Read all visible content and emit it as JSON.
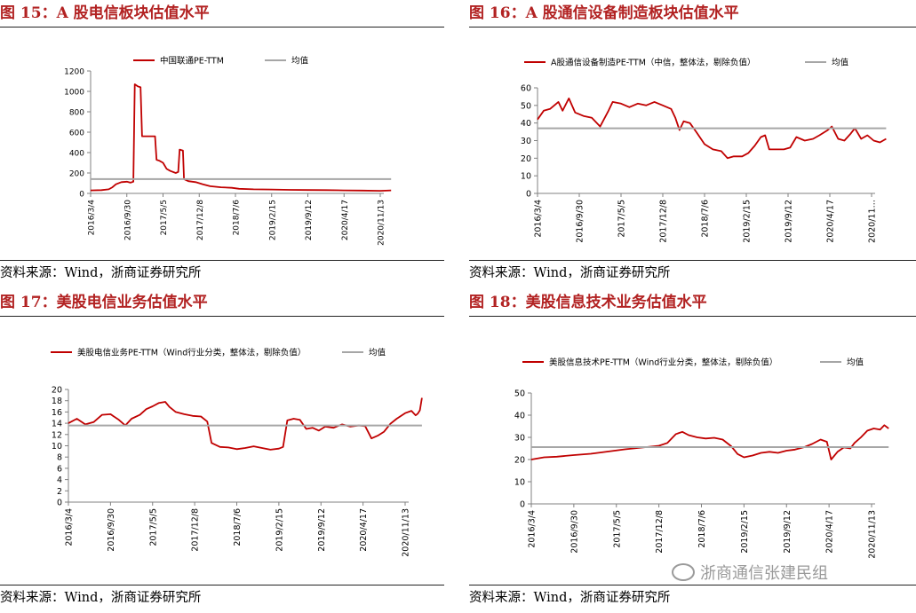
{
  "source_text": "资料来源：Wind，浙商证券研究所",
  "watermark": "浙商通信张建民组",
  "colors": {
    "series": "#c00000",
    "mean": "#a6a6a6",
    "title": "#b22222",
    "axis": "#808080"
  },
  "panels": [
    {
      "title": "图 15：A 股电信板块估值水平"
    },
    {
      "title": "图 16：A 股通信设备制造板块估值水平"
    },
    {
      "title": "图 17：美股电信业务估值水平"
    },
    {
      "title": "图 18：美股信息技术业务估值水平"
    }
  ],
  "chart_data": [
    {
      "type": "line",
      "x_ticks": [
        "2016/3/4",
        "2016/9/30",
        "2017/5/5",
        "2017/12/8",
        "2018/7/6",
        "2019/2/15",
        "2019/9/12",
        "2020/4/17",
        "2020/11/13"
      ],
      "ylim": [
        0,
        1200
      ],
      "y_ticks": [
        0,
        200,
        400,
        600,
        800,
        1000,
        1200
      ],
      "series": [
        {
          "name": "中国联通PE-TTM",
          "points": [
            [
              0,
              30
            ],
            [
              0.3,
              32
            ],
            [
              0.5,
              40
            ],
            [
              0.6,
              60
            ],
            [
              0.7,
              90
            ],
            [
              0.85,
              110
            ],
            [
              1.0,
              115
            ],
            [
              1.1,
              105
            ],
            [
              1.18,
              115
            ],
            [
              1.22,
              1070
            ],
            [
              1.3,
              1050
            ],
            [
              1.38,
              1040
            ],
            [
              1.42,
              560
            ],
            [
              1.6,
              560
            ],
            [
              1.78,
              560
            ],
            [
              1.82,
              330
            ],
            [
              1.9,
              320
            ],
            [
              2.0,
              300
            ],
            [
              2.1,
              240
            ],
            [
              2.2,
              220
            ],
            [
              2.35,
              200
            ],
            [
              2.42,
              210
            ],
            [
              2.46,
              430
            ],
            [
              2.55,
              420
            ],
            [
              2.58,
              140
            ],
            [
              2.7,
              120
            ],
            [
              2.9,
              110
            ],
            [
              3.1,
              90
            ],
            [
              3.3,
              70
            ],
            [
              3.6,
              60
            ],
            [
              3.9,
              55
            ],
            [
              4.1,
              45
            ],
            [
              4.5,
              40
            ],
            [
              5.0,
              38
            ],
            [
              5.5,
              35
            ],
            [
              6.0,
              33
            ],
            [
              6.5,
              32
            ],
            [
              7.0,
              30
            ],
            [
              7.5,
              28
            ],
            [
              8.0,
              25
            ],
            [
              8.3,
              30
            ]
          ]
        },
        {
          "name": "均值",
          "points": [
            [
              0,
              140
            ],
            [
              8.3,
              140
            ]
          ]
        }
      ]
    },
    {
      "type": "line",
      "x_ticks": [
        "2016/3/4",
        "2016/9/30",
        "2017/5/5",
        "2017/12/8",
        "2018/7/6",
        "2019/2/15",
        "2019/9/12",
        "2020/4/17",
        "2020/11…"
      ],
      "ylim": [
        0,
        60
      ],
      "y_ticks": [
        0,
        10,
        20,
        30,
        40,
        50,
        60
      ],
      "series": [
        {
          "name": "A股通信设备制造PE-TTM（中信，整体法，剔除负值）",
          "points": [
            [
              0,
              42
            ],
            [
              0.15,
              47
            ],
            [
              0.3,
              48
            ],
            [
              0.5,
              52
            ],
            [
              0.6,
              47
            ],
            [
              0.75,
              54
            ],
            [
              0.9,
              46
            ],
            [
              1.1,
              44
            ],
            [
              1.3,
              43
            ],
            [
              1.5,
              38
            ],
            [
              1.7,
              47
            ],
            [
              1.8,
              52
            ],
            [
              2.0,
              51
            ],
            [
              2.2,
              49
            ],
            [
              2.4,
              51
            ],
            [
              2.6,
              50
            ],
            [
              2.8,
              52
            ],
            [
              3.0,
              50
            ],
            [
              3.2,
              48
            ],
            [
              3.3,
              43
            ],
            [
              3.4,
              36
            ],
            [
              3.5,
              41
            ],
            [
              3.65,
              40
            ],
            [
              3.8,
              35
            ],
            [
              4.0,
              28
            ],
            [
              4.2,
              25
            ],
            [
              4.4,
              24
            ],
            [
              4.55,
              20
            ],
            [
              4.7,
              21
            ],
            [
              4.9,
              21
            ],
            [
              5.05,
              23
            ],
            [
              5.2,
              27
            ],
            [
              5.35,
              32
            ],
            [
              5.45,
              33
            ],
            [
              5.55,
              25
            ],
            [
              5.7,
              25
            ],
            [
              5.9,
              25
            ],
            [
              6.05,
              26
            ],
            [
              6.2,
              32
            ],
            [
              6.4,
              30
            ],
            [
              6.6,
              31
            ],
            [
              6.75,
              33
            ],
            [
              6.95,
              36
            ],
            [
              7.05,
              38
            ],
            [
              7.2,
              31
            ],
            [
              7.35,
              30
            ],
            [
              7.5,
              34
            ],
            [
              7.6,
              37
            ],
            [
              7.75,
              31
            ],
            [
              7.9,
              33
            ],
            [
              8.05,
              30
            ],
            [
              8.2,
              29
            ],
            [
              8.35,
              31
            ]
          ]
        },
        {
          "name": "均值",
          "points": [
            [
              0,
              37
            ],
            [
              8.35,
              37
            ]
          ]
        }
      ]
    },
    {
      "type": "line",
      "x_ticks": [
        "2016/3/4",
        "2016/9/30",
        "2017/5/5",
        "2017/12/8",
        "2018/7/6",
        "2019/2/15",
        "2019/9/12",
        "2020/4/17",
        "2020/11/13"
      ],
      "ylim": [
        0,
        20
      ],
      "y_ticks": [
        0,
        2,
        4,
        6,
        8,
        10,
        12,
        14,
        16,
        18,
        20
      ],
      "series": [
        {
          "name": "美股电信业务PE-TTM（Wind行业分类，整体法，剔除负值）",
          "points": [
            [
              0,
              14
            ],
            [
              0.2,
              14.8
            ],
            [
              0.4,
              13.8
            ],
            [
              0.6,
              14.2
            ],
            [
              0.8,
              15.5
            ],
            [
              1.0,
              15.6
            ],
            [
              1.2,
              14.6
            ],
            [
              1.35,
              13.6
            ],
            [
              1.5,
              14.8
            ],
            [
              1.7,
              15.5
            ],
            [
              1.85,
              16.5
            ],
            [
              2.0,
              17.0
            ],
            [
              2.15,
              17.6
            ],
            [
              2.3,
              17.8
            ],
            [
              2.4,
              16.9
            ],
            [
              2.55,
              16.0
            ],
            [
              2.75,
              15.6
            ],
            [
              2.95,
              15.3
            ],
            [
              3.15,
              15.2
            ],
            [
              3.3,
              14.3
            ],
            [
              3.4,
              10.5
            ],
            [
              3.6,
              9.8
            ],
            [
              3.8,
              9.7
            ],
            [
              4.0,
              9.4
            ],
            [
              4.2,
              9.6
            ],
            [
              4.4,
              9.9
            ],
            [
              4.6,
              9.6
            ],
            [
              4.8,
              9.3
            ],
            [
              5.0,
              9.5
            ],
            [
              5.1,
              9.8
            ],
            [
              5.2,
              14.5
            ],
            [
              5.35,
              14.8
            ],
            [
              5.5,
              14.6
            ],
            [
              5.65,
              13.0
            ],
            [
              5.8,
              13.2
            ],
            [
              5.95,
              12.7
            ],
            [
              6.1,
              13.4
            ],
            [
              6.3,
              13.2
            ],
            [
              6.5,
              13.8
            ],
            [
              6.7,
              13.4
            ],
            [
              6.9,
              13.6
            ],
            [
              7.05,
              13.5
            ],
            [
              7.2,
              11.3
            ],
            [
              7.35,
              11.8
            ],
            [
              7.5,
              12.5
            ],
            [
              7.65,
              13.9
            ],
            [
              7.8,
              14.8
            ],
            [
              8.0,
              15.8
            ],
            [
              8.15,
              16.2
            ],
            [
              8.25,
              15.4
            ],
            [
              8.3,
              15.7
            ],
            [
              8.35,
              16.3
            ],
            [
              8.4,
              18.5
            ]
          ]
        },
        {
          "name": "均值",
          "points": [
            [
              0,
              13.6
            ],
            [
              8.4,
              13.6
            ]
          ]
        }
      ]
    },
    {
      "type": "line",
      "x_ticks": [
        "2016/3/4",
        "2016/9/30",
        "2017/5/5",
        "2017/12/8",
        "2018/7/6",
        "2019/2/15",
        "2019/9/12",
        "2020/4/17",
        "2020/11/13"
      ],
      "ylim": [
        0,
        50
      ],
      "y_ticks": [
        0,
        10,
        20,
        30,
        40,
        50
      ],
      "series": [
        {
          "name": "美股信息技术PE-TTM（Wind行业分类，整体法，剔除负值）",
          "points": [
            [
              0,
              20.0
            ],
            [
              0.3,
              21.0
            ],
            [
              0.6,
              21.3
            ],
            [
              1.0,
              22.0
            ],
            [
              1.4,
              22.6
            ],
            [
              1.8,
              23.6
            ],
            [
              2.2,
              24.6
            ],
            [
              2.6,
              25.4
            ],
            [
              3.0,
              26.2
            ],
            [
              3.2,
              27.5
            ],
            [
              3.4,
              31.5
            ],
            [
              3.55,
              32.5
            ],
            [
              3.7,
              31.0
            ],
            [
              3.9,
              30.0
            ],
            [
              4.1,
              29.5
            ],
            [
              4.3,
              29.8
            ],
            [
              4.5,
              29.0
            ],
            [
              4.7,
              26.0
            ],
            [
              4.85,
              22.5
            ],
            [
              5.0,
              21.0
            ],
            [
              5.2,
              21.8
            ],
            [
              5.4,
              23.0
            ],
            [
              5.6,
              23.5
            ],
            [
              5.8,
              23.0
            ],
            [
              6.0,
              24.0
            ],
            [
              6.2,
              24.5
            ],
            [
              6.4,
              25.5
            ],
            [
              6.6,
              27.0
            ],
            [
              6.8,
              29.0
            ],
            [
              6.95,
              28.0
            ],
            [
              7.05,
              20.0
            ],
            [
              7.2,
              23.5
            ],
            [
              7.35,
              25.5
            ],
            [
              7.5,
              25.0
            ],
            [
              7.6,
              27.5
            ],
            [
              7.75,
              30.0
            ],
            [
              7.9,
              33.0
            ],
            [
              8.05,
              34.0
            ],
            [
              8.2,
              33.5
            ],
            [
              8.3,
              35.5
            ],
            [
              8.4,
              34.0
            ]
          ]
        },
        {
          "name": "均值",
          "points": [
            [
              0,
              25.6
            ],
            [
              8.4,
              25.6
            ]
          ]
        }
      ]
    }
  ]
}
